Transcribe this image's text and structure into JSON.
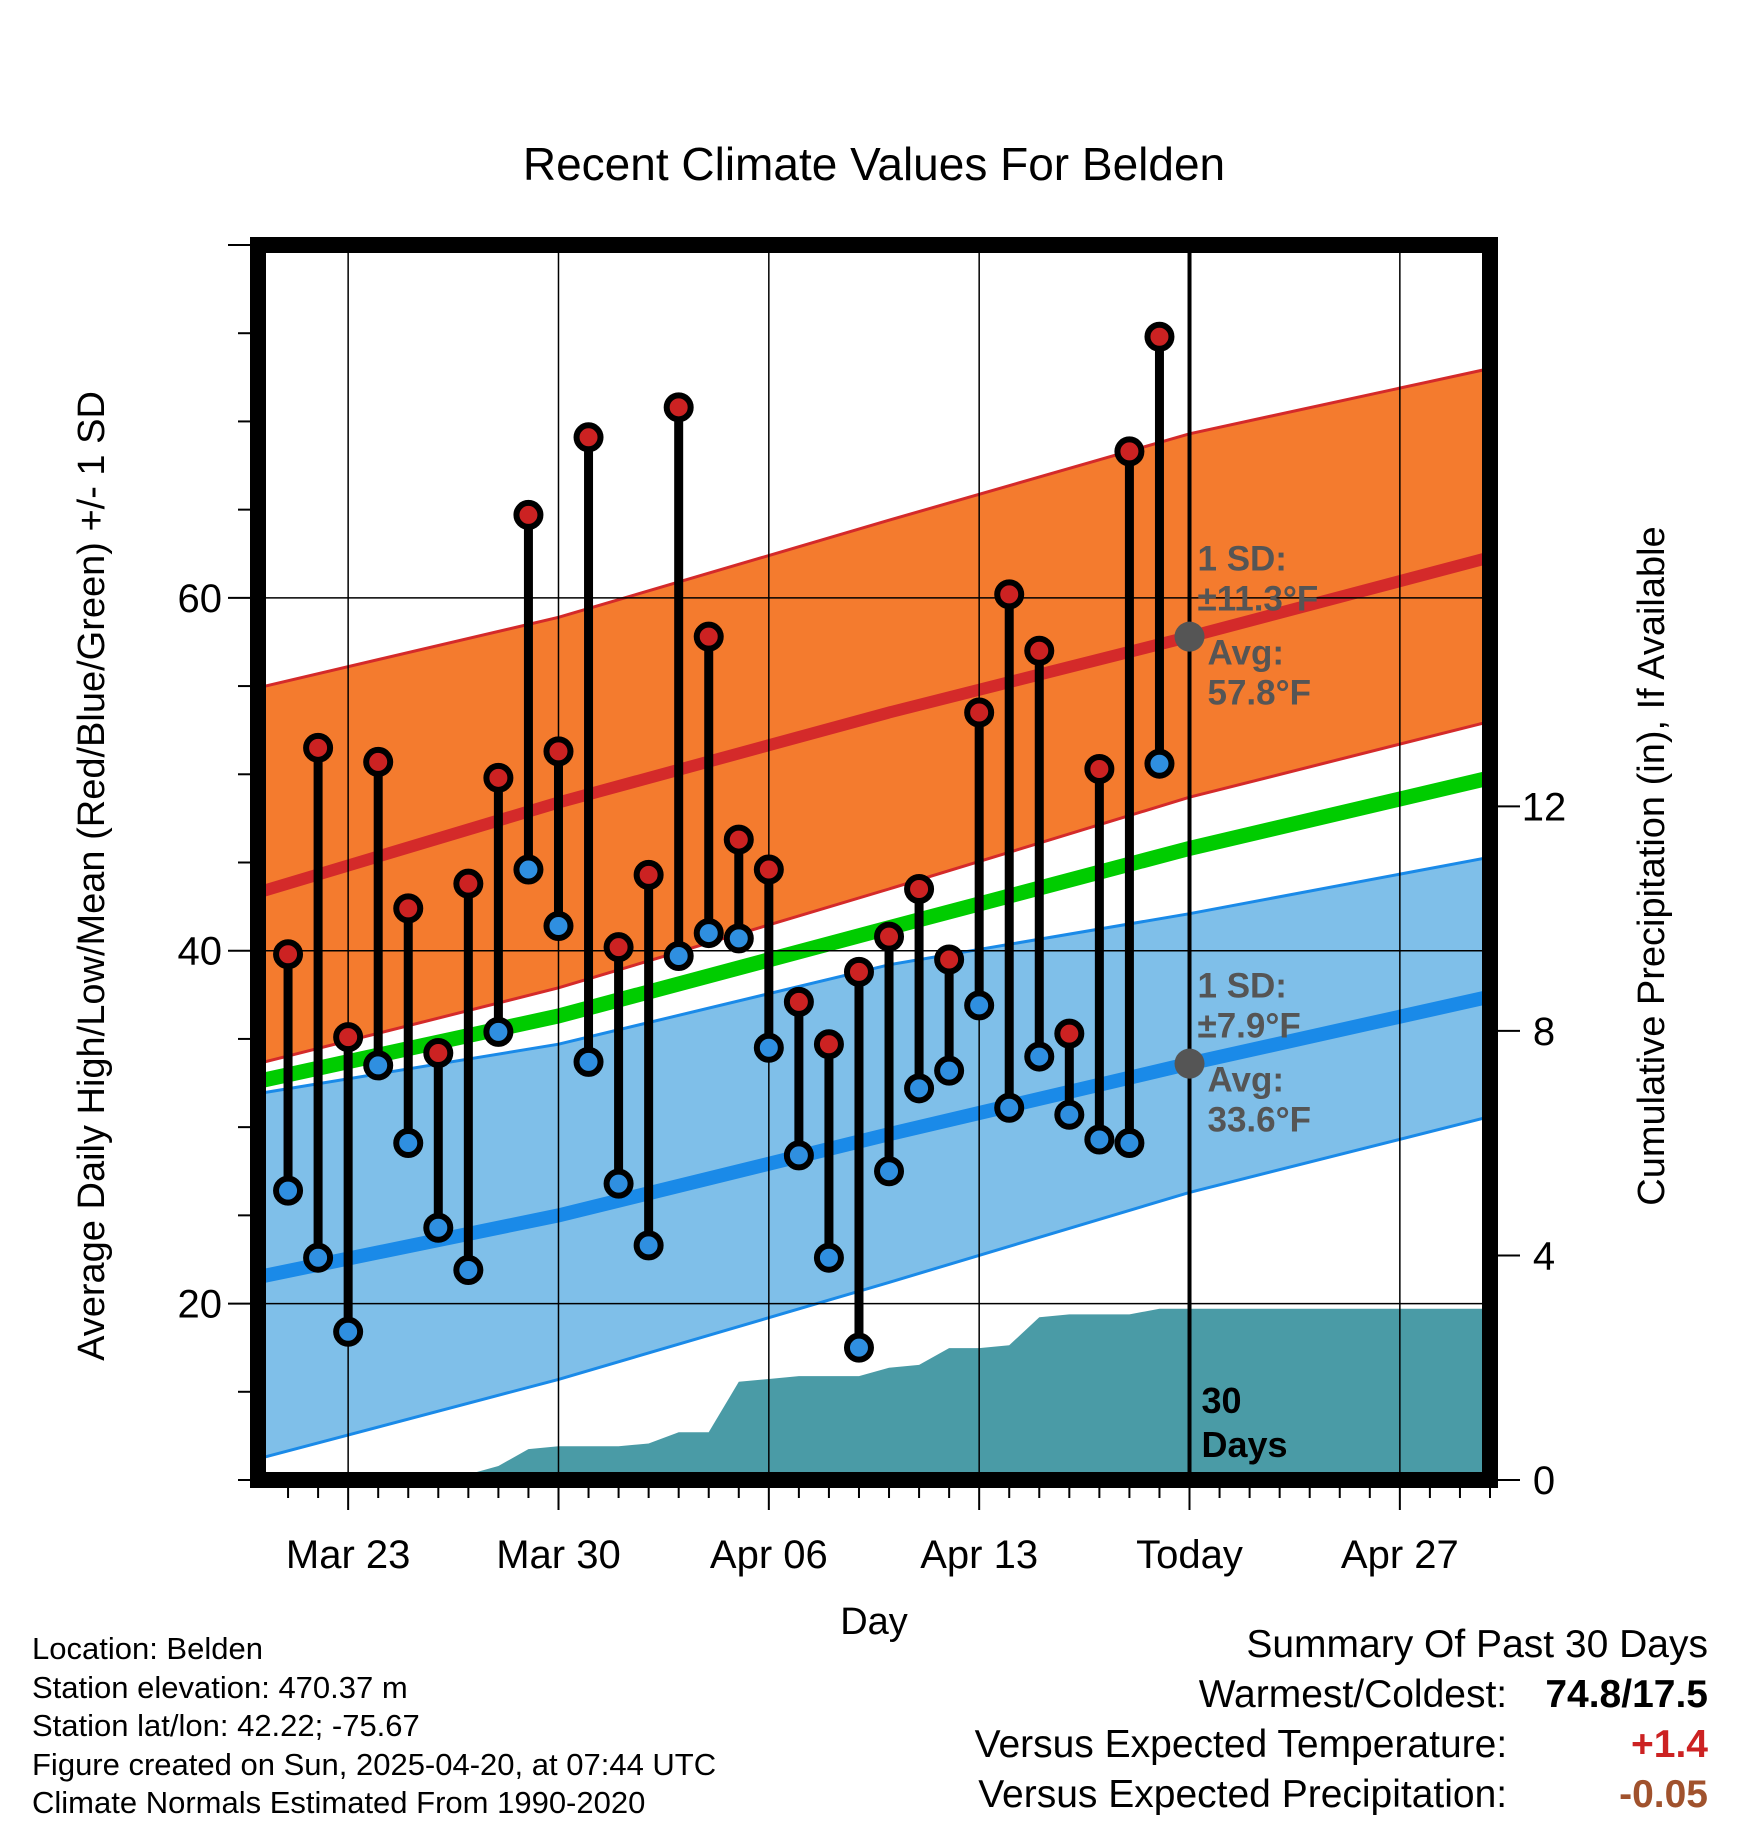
{
  "chart_data": {
    "type": "line",
    "title": "Recent Climate Values For Belden",
    "xlabel": "Day",
    "ylabel": "Average Daily High/Low/Mean (Red/Blue/Green) +/- 1 SD",
    "y2label": "Cumulative Precipitation (in), If Available",
    "x_ticks": [
      "Mar 23",
      "Mar 30",
      "Apr 06",
      "Apr 13",
      "Today",
      "Apr 27"
    ],
    "x_range": [
      "2025-03-20",
      "2025-04-30"
    ],
    "today": "2025-04-20",
    "ylim": [
      10,
      80
    ],
    "y_ticks": [
      20,
      40,
      60
    ],
    "y2lim": [
      0,
      22
    ],
    "y2_ticks": [
      0,
      4,
      8,
      12
    ],
    "grid": true,
    "today_label": "30 Days",
    "series": [
      {
        "name": "High",
        "color": "#cc2222",
        "x": [
          "2025-03-21",
          "2025-03-22",
          "2025-03-23",
          "2025-03-24",
          "2025-03-25",
          "2025-03-26",
          "2025-03-27",
          "2025-03-28",
          "2025-03-29",
          "2025-03-30",
          "2025-03-31",
          "2025-04-01",
          "2025-04-02",
          "2025-04-03",
          "2025-04-04",
          "2025-04-05",
          "2025-04-06",
          "2025-04-07",
          "2025-04-08",
          "2025-04-09",
          "2025-04-10",
          "2025-04-11",
          "2025-04-12",
          "2025-04-13",
          "2025-04-14",
          "2025-04-15",
          "2025-04-16",
          "2025-04-17",
          "2025-04-18",
          "2025-04-19"
        ],
        "values": [
          39.8,
          51.5,
          35.1,
          50.7,
          42.4,
          34.2,
          43.8,
          49.8,
          64.7,
          51.3,
          69.1,
          40.2,
          44.3,
          70.8,
          57.8,
          46.3,
          44.6,
          37.1,
          34.7,
          38.8,
          40.8,
          43.5,
          39.5,
          53.5,
          60.2,
          57.0,
          35.3,
          50.3,
          68.3,
          74.8
        ]
      },
      {
        "name": "Low",
        "color": "#2f8fe0",
        "x": [
          "2025-03-21",
          "2025-03-22",
          "2025-03-23",
          "2025-03-24",
          "2025-03-25",
          "2025-03-26",
          "2025-03-27",
          "2025-03-28",
          "2025-03-29",
          "2025-03-30",
          "2025-03-31",
          "2025-04-01",
          "2025-04-02",
          "2025-04-03",
          "2025-04-04",
          "2025-04-05",
          "2025-04-06",
          "2025-04-07",
          "2025-04-08",
          "2025-04-09",
          "2025-04-10",
          "2025-04-11",
          "2025-04-12",
          "2025-04-13",
          "2025-04-14",
          "2025-04-15",
          "2025-04-16",
          "2025-04-17",
          "2025-04-18",
          "2025-04-19"
        ],
        "values": [
          26.4,
          22.6,
          18.4,
          33.5,
          29.1,
          24.3,
          21.9,
          35.4,
          44.6,
          41.4,
          33.7,
          26.8,
          23.3,
          39.7,
          41.0,
          40.7,
          34.5,
          28.4,
          22.6,
          17.5,
          27.5,
          32.2,
          33.2,
          36.9,
          31.1,
          34.0,
          30.7,
          29.3,
          29.1,
          50.6
        ]
      },
      {
        "name": "Normal High",
        "color": "#d42a2a",
        "x": [
          "2025-03-20",
          "2025-03-30",
          "2025-04-10",
          "2025-04-20",
          "2025-04-30"
        ],
        "values": [
          43.3,
          48.4,
          53.5,
          57.8,
          62.3
        ]
      },
      {
        "name": "Normal High +1 SD",
        "color": "#d42a2a",
        "x": [
          "2025-03-20",
          "2025-03-30",
          "2025-04-10",
          "2025-04-20",
          "2025-04-30"
        ],
        "values": [
          54.9,
          58.9,
          64.4,
          69.3,
          73.0
        ]
      },
      {
        "name": "Normal High -1 SD",
        "color": "#d42a2a",
        "x": [
          "2025-03-20",
          "2025-03-30",
          "2025-04-10",
          "2025-04-20",
          "2025-04-30"
        ],
        "values": [
          33.6,
          37.9,
          43.5,
          48.7,
          53.0
        ]
      },
      {
        "name": "Normal Mean",
        "color": "#00cc00",
        "x": [
          "2025-03-20",
          "2025-03-30",
          "2025-04-10",
          "2025-04-20",
          "2025-04-30"
        ],
        "values": [
          32.6,
          36.3,
          41.3,
          45.8,
          49.8
        ]
      },
      {
        "name": "Normal Low",
        "color": "#1a8ae8",
        "x": [
          "2025-03-20",
          "2025-03-30",
          "2025-04-10",
          "2025-04-20",
          "2025-04-30"
        ],
        "values": [
          21.5,
          25.0,
          29.6,
          33.6,
          37.4
        ]
      },
      {
        "name": "Normal Low +1 SD",
        "color": "#1a8ae8",
        "x": [
          "2025-03-20",
          "2025-03-30",
          "2025-04-10",
          "2025-04-20",
          "2025-04-30"
        ],
        "values": [
          31.9,
          34.7,
          39.2,
          42.1,
          45.3
        ]
      },
      {
        "name": "Normal Low -1 SD",
        "color": "#1a8ae8",
        "x": [
          "2025-03-20",
          "2025-03-30",
          "2025-04-10",
          "2025-04-20",
          "2025-04-30"
        ],
        "values": [
          11.2,
          15.7,
          21.2,
          26.3,
          30.6
        ]
      },
      {
        "name": "Cumulative Precipitation",
        "color": "#4a9ba6",
        "axis": "y2",
        "x": [
          "2025-03-20",
          "2025-03-25",
          "2025-03-26",
          "2025-03-27",
          "2025-03-28",
          "2025-03-29",
          "2025-03-30",
          "2025-03-31",
          "2025-04-01",
          "2025-04-02",
          "2025-04-03",
          "2025-04-04",
          "2025-04-05",
          "2025-04-06",
          "2025-04-07",
          "2025-04-08",
          "2025-04-09",
          "2025-04-10",
          "2025-04-11",
          "2025-04-12",
          "2025-04-13",
          "2025-04-14",
          "2025-04-15",
          "2025-04-16",
          "2025-04-17",
          "2025-04-18",
          "2025-04-19",
          "2025-04-30"
        ],
        "values": [
          0,
          0,
          0.05,
          0.1,
          0.25,
          0.55,
          0.6,
          0.6,
          0.6,
          0.65,
          0.85,
          0.85,
          1.75,
          1.8,
          1.85,
          1.85,
          1.85,
          2.0,
          2.05,
          2.35,
          2.35,
          2.4,
          2.9,
          2.95,
          2.95,
          2.95,
          3.05,
          3.05
        ]
      }
    ],
    "annotations": [
      {
        "series": "Normal High",
        "date": "2025-04-20",
        "value": 57.8,
        "sd_label": "1 SD:",
        "sd_value": "±11.3°F",
        "avg_label": "Avg:",
        "avg_value": "57.8°F"
      },
      {
        "series": "Normal Low",
        "date": "2025-04-20",
        "value": 33.6,
        "sd_label": "1 SD:",
        "sd_value": "±7.9°F",
        "avg_label": "Avg:",
        "avg_value": "33.6°F"
      }
    ]
  },
  "info": {
    "location": "Location: Belden",
    "elevation": "Station elevation: 470.37 m",
    "latlon": "Station lat/lon: 42.22; -75.67",
    "created": "Figure created on Sun, 2025-04-20, at 07:44 UTC",
    "normals": "Climate Normals Estimated From 1990-2020"
  },
  "summary": {
    "title": "Summary Of Past 30 Days",
    "warm_cold_label": "Warmest/Coldest:",
    "warm_cold_value": "74.8/17.5",
    "temp_label": "Versus Expected Temperature:",
    "temp_value": "+1.4",
    "temp_color": "#cc2222",
    "precip_label": "Versus Expected Precipitation:",
    "precip_value": "-0.05",
    "precip_color": "#a0522d"
  }
}
